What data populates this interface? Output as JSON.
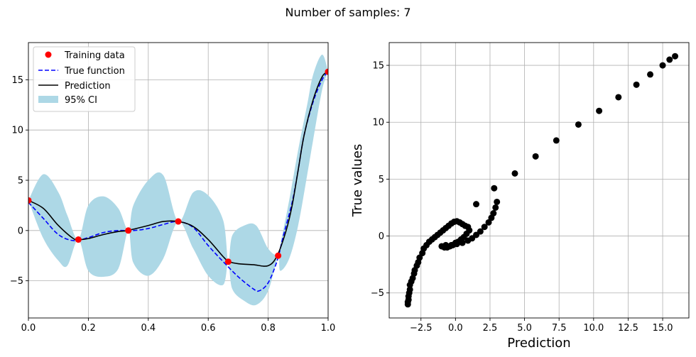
{
  "figure": {
    "suptitle": "Number of samples: 7"
  },
  "chart_data": [
    {
      "type": "line",
      "title": "",
      "xlabel": "",
      "ylabel": "",
      "xlim": [
        0,
        1
      ],
      "ylim": [
        -8.7,
        18.7
      ],
      "grid": true,
      "x_ticks": [
        0,
        0.2,
        0.4,
        0.6,
        0.8,
        1.0
      ],
      "x_tick_labels": [
        "0.0",
        "0.2",
        "0.4",
        "0.6",
        "0.8",
        "1.0"
      ],
      "y_ticks": [
        -5,
        0,
        5,
        10,
        15
      ],
      "y_tick_labels": [
        "−5",
        "0",
        "5",
        "10",
        "15"
      ],
      "legend": {
        "position": "top-left",
        "entries": [
          {
            "label": "Training data",
            "kind": "marker",
            "color": "#ff0000"
          },
          {
            "label": "True function",
            "kind": "dashed",
            "color": "#0000ff"
          },
          {
            "label": "Prediction",
            "kind": "line",
            "color": "#000000"
          },
          {
            "label": "95% CI",
            "kind": "patch",
            "color": "#add8e6"
          }
        ]
      },
      "series": [
        {
          "name": "Training data",
          "kind": "scatter",
          "color": "#ff0000",
          "x": [
            0,
            0.1667,
            0.3333,
            0.5,
            0.6667,
            0.8333,
            1.0
          ],
          "y": [
            3.0,
            -0.9,
            0.0,
            0.9,
            -3.1,
            -2.5,
            15.8
          ]
        },
        {
          "name": "True function",
          "kind": "dashed-line",
          "color": "#0000ff",
          "x": [
            0,
            0.05,
            0.1,
            0.15,
            0.2,
            0.25,
            0.3,
            0.35,
            0.4,
            0.45,
            0.5,
            0.55,
            0.6,
            0.65,
            0.7,
            0.75,
            0.77,
            0.8,
            0.83,
            0.85,
            0.88,
            0.9,
            0.92,
            0.95,
            0.98,
            1.0
          ],
          "y": [
            2.8,
            1.2,
            -0.4,
            -1.0,
            -0.7,
            -0.2,
            0.0,
            0.0,
            0.2,
            0.6,
            0.9,
            0.3,
            -1.5,
            -3.1,
            -4.6,
            -5.8,
            -6.0,
            -5.2,
            -3.0,
            -0.6,
            2.8,
            6.0,
            9.5,
            12.8,
            15.0,
            15.8
          ]
        },
        {
          "name": "Prediction",
          "kind": "line",
          "color": "#000000",
          "x": [
            0,
            0.05,
            0.1,
            0.15,
            0.17,
            0.2,
            0.25,
            0.3,
            0.33,
            0.4,
            0.45,
            0.5,
            0.55,
            0.6,
            0.65,
            0.67,
            0.7,
            0.75,
            0.8,
            0.83,
            0.86,
            0.88,
            0.9,
            0.92,
            0.95,
            0.98,
            1.0
          ],
          "y": [
            3.0,
            2.2,
            0.5,
            -0.8,
            -0.9,
            -0.8,
            -0.4,
            -0.1,
            0.0,
            0.5,
            0.9,
            0.9,
            0.4,
            -0.9,
            -2.6,
            -3.1,
            -3.3,
            -3.4,
            -3.5,
            -2.5,
            0.0,
            2.5,
            6.0,
            9.5,
            13.0,
            15.3,
            15.8
          ]
        },
        {
          "name": "95% CI",
          "kind": "band",
          "color": "#add8e6",
          "x": [
            0,
            0.05,
            0.1,
            0.13,
            0.1667,
            0.2,
            0.25,
            0.3,
            0.3333,
            0.35,
            0.4,
            0.45,
            0.5,
            0.55,
            0.6,
            0.65,
            0.6667,
            0.68,
            0.72,
            0.76,
            0.8,
            0.8333,
            0.84,
            0.87,
            0.9,
            0.93,
            0.95,
            0.98,
            1.0
          ],
          "lower": [
            3.0,
            -0.8,
            -3.0,
            -3.5,
            -0.9,
            -4.0,
            -4.6,
            -3.8,
            0.0,
            -3.2,
            -4.5,
            -2.8,
            0.9,
            -1.8,
            -4.5,
            -5.4,
            -3.1,
            -5.8,
            -7.0,
            -7.4,
            -6.0,
            -2.5,
            -4.0,
            -2.8,
            0.5,
            5.5,
            9.0,
            14.0,
            15.8
          ],
          "upper": [
            3.0,
            5.6,
            3.8,
            1.5,
            -0.9,
            2.5,
            3.4,
            2.2,
            0.0,
            2.5,
            5.0,
            5.5,
            0.9,
            3.8,
            3.5,
            1.0,
            -3.1,
            -0.5,
            0.5,
            0.5,
            -1.8,
            -2.5,
            -1.5,
            3.0,
            8.0,
            12.5,
            15.5,
            17.5,
            15.8
          ]
        }
      ]
    },
    {
      "type": "scatter",
      "title": "",
      "xlabel": "Prediction",
      "ylabel": "True values",
      "xlim": [
        -4.8,
        16.9
      ],
      "ylim": [
        -7.2,
        17.0
      ],
      "grid": true,
      "x_ticks": [
        -2.5,
        0,
        2.5,
        5,
        7.5,
        10,
        12.5,
        15
      ],
      "x_tick_labels": [
        "−2.5",
        "0.0",
        "2.5",
        "5.0",
        "7.5",
        "10.0",
        "12.5",
        "15.0"
      ],
      "y_ticks": [
        -5,
        0,
        5,
        10,
        15
      ],
      "y_tick_labels": [
        "−5",
        "0",
        "5",
        "10",
        "15"
      ],
      "series": [
        {
          "name": "samples",
          "color": "#000000",
          "x": [
            -3.45,
            -3.45,
            -3.4,
            -3.4,
            -3.35,
            -3.3,
            -3.3,
            -3.2,
            -3.1,
            -3.0,
            -2.95,
            -2.8,
            -2.7,
            -2.6,
            -2.4,
            -2.3,
            -2.1,
            -1.9,
            -1.7,
            -1.5,
            -1.3,
            -1.1,
            -0.9,
            -0.7,
            -0.5,
            -0.3,
            -0.1,
            0.1,
            0.3,
            0.5,
            0.7,
            0.9,
            1.0,
            0.8,
            0.6,
            0.4,
            0.2,
            0.0,
            -0.2,
            -0.4,
            -0.6,
            -0.8,
            -1.0,
            -0.7,
            -0.3,
            0.1,
            0.5,
            0.9,
            1.2,
            1.5,
            1.8,
            2.1,
            2.4,
            2.6,
            2.75,
            2.9,
            3.0,
            2.8,
            1.5,
            4.3,
            5.8,
            7.3,
            8.9,
            10.4,
            11.8,
            13.1,
            14.1,
            15.0,
            15.5,
            15.9
          ],
          "y": [
            -6.0,
            -5.8,
            -5.6,
            -5.3,
            -5.0,
            -4.7,
            -4.3,
            -4.0,
            -3.7,
            -3.3,
            -3.0,
            -2.6,
            -2.3,
            -1.9,
            -1.5,
            -1.1,
            -0.8,
            -0.5,
            -0.3,
            -0.1,
            0.1,
            0.3,
            0.5,
            0.7,
            0.9,
            1.1,
            1.25,
            1.3,
            1.2,
            1.05,
            0.9,
            0.8,
            0.5,
            0.2,
            -0.1,
            -0.3,
            -0.5,
            -0.6,
            -0.8,
            -0.9,
            -1.0,
            -1.0,
            -0.9,
            -0.8,
            -0.8,
            -0.7,
            -0.6,
            -0.4,
            -0.2,
            0.1,
            0.4,
            0.8,
            1.2,
            1.6,
            2.0,
            2.5,
            3.0,
            4.2,
            2.8,
            5.5,
            7.0,
            8.4,
            9.8,
            11.0,
            12.2,
            13.3,
            14.2,
            15.0,
            15.5,
            15.8
          ]
        }
      ]
    }
  ]
}
